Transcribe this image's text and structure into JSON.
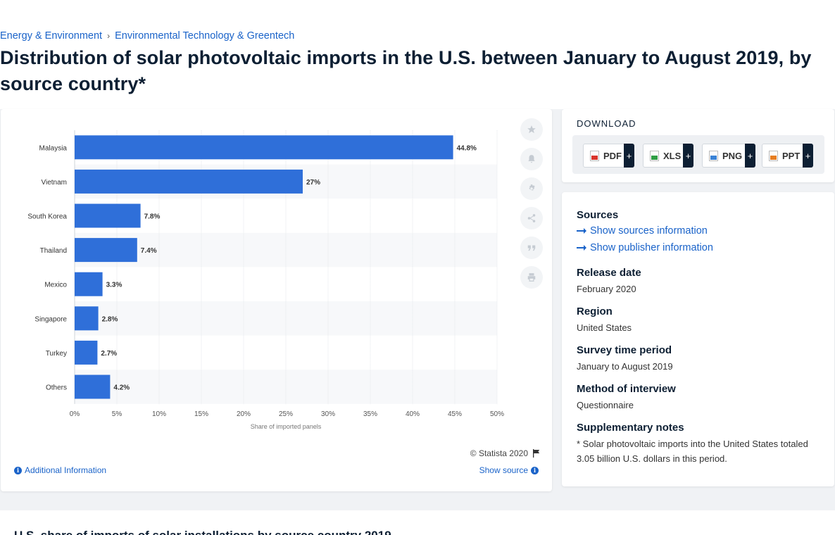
{
  "breadcrumb": {
    "items": [
      "Energy & Environment",
      "Environmental Technology & Greentech"
    ],
    "separator": "›"
  },
  "page_title": "Distribution of solar photovoltaic imports in the U.S. between January to August 2019, by source country*",
  "chart_card": {
    "copyright": "© Statista 2020",
    "additional_info": "Additional Information",
    "show_source": "Show source",
    "toolbar_icons": [
      "star-icon",
      "bell-icon",
      "gear-icon",
      "share-icon",
      "quote-icon",
      "print-icon"
    ]
  },
  "chart_data": {
    "type": "bar",
    "orientation": "horizontal",
    "categories": [
      "Malaysia",
      "Vietnam",
      "South Korea",
      "Thailand",
      "Mexico",
      "Singapore",
      "Turkey",
      "Others"
    ],
    "values": [
      44.8,
      27,
      7.8,
      7.4,
      3.3,
      2.8,
      2.7,
      4.2
    ],
    "data_labels": [
      "44.8%",
      "27%",
      "7.8%",
      "7.4%",
      "3.3%",
      "2.8%",
      "2.7%",
      "4.2%"
    ],
    "xlabel": "Share of imported panels",
    "ylabel": "",
    "xlim": [
      0,
      50
    ],
    "ticks": [
      "0%",
      "5%",
      "10%",
      "15%",
      "20%",
      "25%",
      "30%",
      "35%",
      "40%",
      "45%",
      "50%"
    ],
    "tick_values": [
      0,
      5,
      10,
      15,
      20,
      25,
      30,
      35,
      40,
      45,
      50
    ],
    "grid": true,
    "bar_color": "#2f6fd9"
  },
  "download": {
    "title": "DOWNLOAD",
    "buttons": [
      {
        "label": "PDF",
        "plus": "+"
      },
      {
        "label": "XLS",
        "plus": "+"
      },
      {
        "label": "PNG",
        "plus": "+"
      },
      {
        "label": "PPT",
        "plus": "+"
      }
    ]
  },
  "info": {
    "sources_heading": "Sources",
    "show_sources": "Show sources information",
    "show_publisher": "Show publisher information",
    "release_date_heading": "Release date",
    "release_date": "February 2020",
    "region_heading": "Region",
    "region": "United States",
    "survey_period_heading": "Survey time period",
    "survey_period": "January to August 2019",
    "method_heading": "Method of interview",
    "method": "Questionnaire",
    "notes_heading": "Supplementary notes",
    "notes": "* Solar photovoltaic imports into the United States totaled 3.05 billion U.S. dollars in this period."
  },
  "bottom": {
    "title": "U.S. share of imports of solar installations by source country 2019"
  }
}
